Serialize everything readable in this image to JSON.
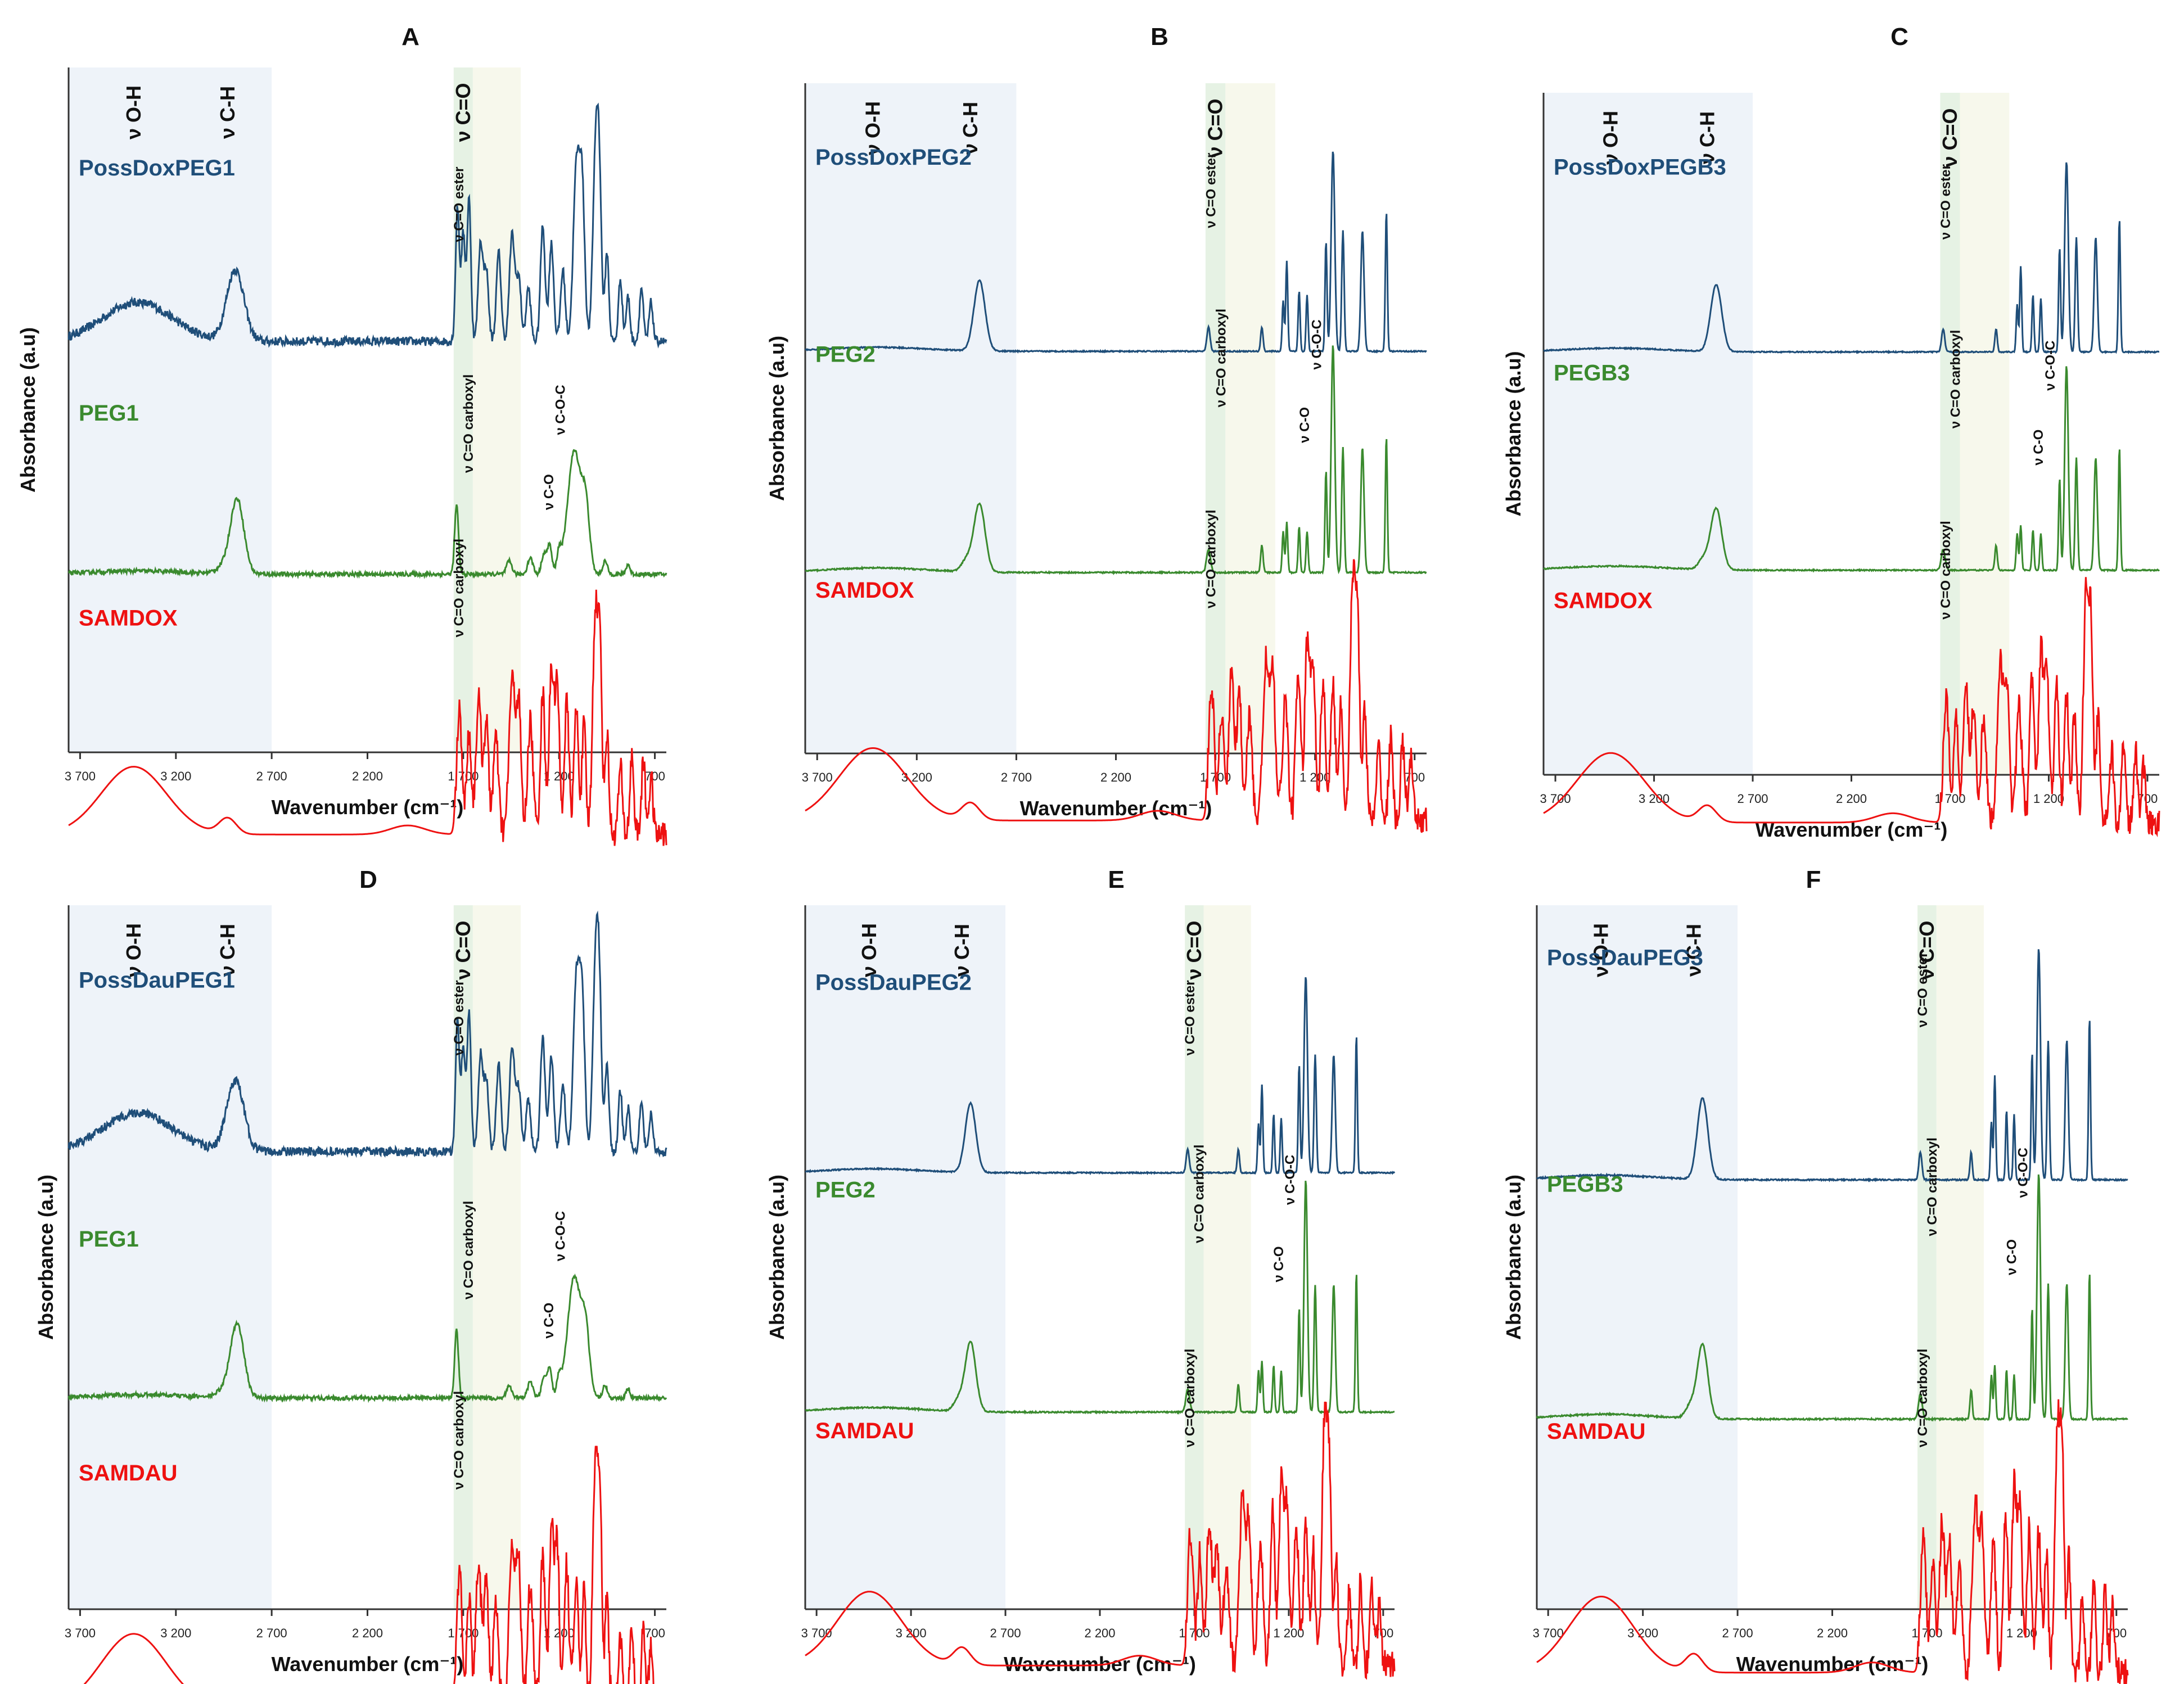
{
  "figure": {
    "panels": [
      {
        "letter": "A",
        "top": "PossDoxPEG1",
        "mid": "PEG1",
        "bottom": "SAMDOX",
        "top_label": "ν C=O ester",
        "mid_label": "ν C=O carboxyl",
        "bottom_label": "ν C=O carboxyl",
        "co_label": "ν C-O",
        "coc_label": "ν C-O-C"
      },
      {
        "letter": "B",
        "top": "PossDoxPEG2",
        "mid": "PEG2",
        "bottom": "SAMDOX",
        "top_label": "ν C=O ester",
        "mid_label": "ν C=O carboxyl",
        "bottom_label": "ν C=O carboxyl",
        "co_label": "ν C-O",
        "coc_label": "ν C-O-C"
      },
      {
        "letter": "C",
        "top": "PossDoxPEGB3",
        "mid": "PEGB3",
        "bottom": "SAMDOX",
        "top_label": "ν C=O ester",
        "mid_label": "ν C=O carboxyl",
        "bottom_label": "ν C=O carboxyl",
        "co_label": "ν C-O",
        "coc_label": "ν C-O-C"
      },
      {
        "letter": "D",
        "top": "PossDauPEG1",
        "mid": "PEG1",
        "bottom": "SAMDAU",
        "top_label": "ν C=O ester",
        "mid_label": "ν C=O carboxyl",
        "bottom_label": "ν C=O carboxyl",
        "co_label": "ν C-O",
        "coc_label": "ν C-O-C"
      },
      {
        "letter": "E",
        "top": "PossDauPEG2",
        "mid": "PEG2",
        "bottom": "SAMDAU",
        "top_label": "ν C=O ester",
        "mid_label": "ν C=O carboxyl",
        "bottom_label": "ν C=O carboxyl",
        "co_label": "ν C-O",
        "coc_label": "ν C-O-C"
      },
      {
        "letter": "F",
        "top": "PossDauPEG3",
        "mid": "PEGB3",
        "bottom": "SAMDAU",
        "top_label": "ν C=O ester",
        "mid_label": "ν C=O carboxyl",
        "bottom_label": "ν C=O carboxyl",
        "co_label": "ν C-O",
        "coc_label": "ν C-O-C"
      }
    ],
    "colors": {
      "top": "#1f4e79",
      "mid": "#3a8a2e",
      "bottom": "#ee1111"
    }
  },
  "chart_data": [
    {
      "type": "line",
      "title": "A",
      "xlabel": "Wavenumber (cm⁻¹)",
      "ylabel": "Absorbance (a.u)",
      "xlim": [
        3700,
        700
      ],
      "x_ticks": [
        "3 700",
        "3 200",
        "2 700",
        "2 200",
        "1 700",
        "1 200",
        "700"
      ],
      "bands": [
        "ν O-H",
        "ν C-H",
        "ν C=O"
      ],
      "series": [
        {
          "name": "PossDoxPEG1"
        },
        {
          "name": "PEG1"
        },
        {
          "name": "SAMDOX"
        }
      ]
    },
    {
      "type": "line",
      "title": "B",
      "xlabel": "Wavenumber (cm⁻¹)",
      "ylabel": "Absorbance (a.u)",
      "xlim": [
        3700,
        700
      ],
      "x_ticks": [
        "3 700",
        "3 200",
        "2 700",
        "2 200",
        "1 700",
        "1 200",
        "700"
      ],
      "bands": [
        "ν O-H",
        "ν C-H",
        "ν C=O"
      ],
      "series": [
        {
          "name": "PossDoxPEG2"
        },
        {
          "name": "PEG2"
        },
        {
          "name": "SAMDOX"
        }
      ]
    },
    {
      "type": "line",
      "title": "C",
      "xlabel": "Wavenumber (cm⁻¹)",
      "ylabel": "Absorbance (a.u)",
      "xlim": [
        3700,
        700
      ],
      "x_ticks": [
        "3 700",
        "3 200",
        "2 700",
        "2 200",
        "1 700",
        "1 200",
        "700"
      ],
      "bands": [
        "ν O-H",
        "ν C-H",
        "ν C=O"
      ],
      "series": [
        {
          "name": "PossDoxPEGB3"
        },
        {
          "name": "PEGB3"
        },
        {
          "name": "SAMDOX"
        }
      ]
    },
    {
      "type": "line",
      "title": "D",
      "xlabel": "Wavenumber (cm⁻¹)",
      "ylabel": "Absorbance (a.u)",
      "xlim": [
        3700,
        700
      ],
      "x_ticks": [
        "3 700",
        "3 200",
        "2 700",
        "2 200",
        "1 700",
        "1 200",
        "700"
      ],
      "bands": [
        "ν O-H",
        "ν C-H",
        "ν C=O"
      ],
      "series": [
        {
          "name": "PossDauPEG1"
        },
        {
          "name": "PEG1"
        },
        {
          "name": "SAMDAU"
        }
      ]
    },
    {
      "type": "line",
      "title": "E",
      "xlabel": "Wavenumber (cm⁻¹)",
      "ylabel": "Absorbance (a.u)",
      "xlim": [
        3700,
        700
      ],
      "x_ticks": [
        "3 700",
        "3 200",
        "2 700",
        "2 200",
        "1 700",
        "1 200",
        "700"
      ],
      "bands": [
        "ν O-H",
        "ν C-H",
        "ν C=O"
      ],
      "series": [
        {
          "name": "PossDauPEG2"
        },
        {
          "name": "PEG2"
        },
        {
          "name": "SAMDAU"
        }
      ]
    },
    {
      "type": "line",
      "title": "F",
      "xlabel": "Wavenumber (cm⁻¹)",
      "ylabel": "Absorbance (a.u)",
      "xlim": [
        3700,
        700
      ],
      "x_ticks": [
        "3 700",
        "3 200",
        "2 700",
        "2 200",
        "1 700",
        "1 200",
        "700"
      ],
      "bands": [
        "ν O-H",
        "ν C-H",
        "ν C=O"
      ],
      "series": [
        {
          "name": "PossDauPEG3"
        },
        {
          "name": "PEGB3"
        },
        {
          "name": "SAMDAU"
        }
      ]
    }
  ]
}
